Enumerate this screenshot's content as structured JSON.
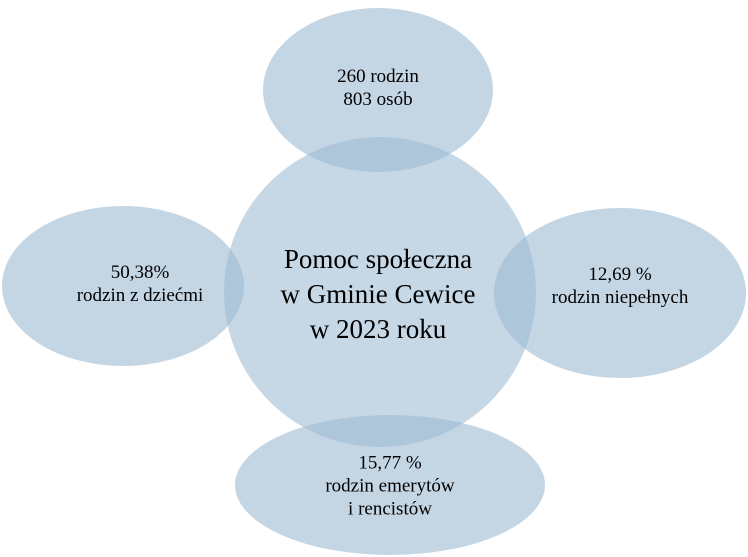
{
  "center": {
    "lines": [
      "Pomoc społeczna",
      "w Gminie Cewice",
      "w 2023 roku"
    ]
  },
  "nodes": [
    {
      "lines": [
        "260 rodzin",
        "803 osób"
      ]
    },
    {
      "lines": [
        "12,69 %",
        "rodzin niepełnych"
      ]
    },
    {
      "lines": [
        "15,77 %",
        "rodzin emerytów",
        "i rencistów"
      ]
    },
    {
      "lines": [
        "50,38%",
        "rodzin z dziećmi"
      ]
    }
  ]
}
